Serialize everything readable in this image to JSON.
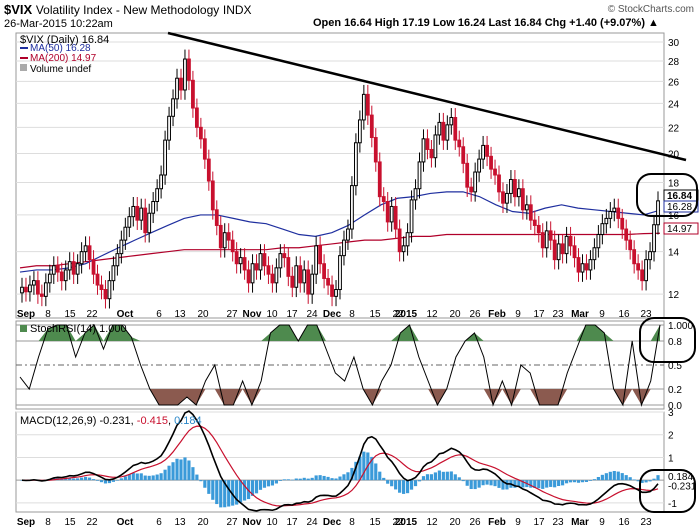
{
  "header": {
    "symbol": "$VIX",
    "name": "Volatility Index - New Methodology",
    "exchange": "INDX",
    "date": "26-Mar-2015 10:22am",
    "copyright": "© StockCharts.com",
    "quote": "Open 16.64  High 17.19  Low 16.24  Last 16.84  Chg +1.40 (+9.07%) ▲"
  },
  "colors": {
    "up": "#000000",
    "down": "#c8102e",
    "ma50": "#1f2f9f",
    "ma200": "#b0002a",
    "green_fill": "#4e8a4e",
    "brown_fill": "#8b5a4f",
    "macd_hist": "#3a9ad9",
    "trendline": "#000000"
  },
  "legend": {
    "price": "$VIX (Daily) 16.84",
    "ma50": "MA(50) 16.28",
    "ma200": "MA(200) 14.97",
    "volume": "Volume undef"
  },
  "stochrsi_label": "StochRSI(14) 1.000",
  "macd_label": {
    "prefix": "MACD(12,26,9) -0.231, ",
    "signal": "-0.415",
    "sep": ", ",
    "hist": "0.184"
  },
  "price_axis_ticks": [
    "30",
    "28",
    "26",
    "24",
    "22",
    "20",
    "18",
    "16",
    "14",
    "12"
  ],
  "price_boxes": {
    "last": "16.84",
    "ma50": "16.28",
    "ma200": "14.97"
  },
  "stoch_axis_ticks": [
    "1.000",
    "0.8",
    "0.5",
    "0.2",
    "0.0"
  ],
  "macd_axis_ticks": [
    "3",
    "2",
    "1",
    "0.184",
    "-0.231",
    "-1"
  ],
  "x_labels": [
    "Sep",
    "8",
    "15",
    "22",
    "Oct",
    "6",
    "13",
    "20",
    "27",
    "Nov",
    "10",
    "17",
    "24",
    "Dec",
    "8",
    "15",
    "22",
    "2015",
    "12",
    "20",
    "26",
    "Feb",
    "9",
    "17",
    "23",
    "Mar",
    "9",
    "16",
    "23"
  ],
  "chart_data": {
    "type": "candlestick",
    "title": "$VIX Volatility Index - New Methodology (Daily)",
    "x_range": [
      "2014-09-02",
      "2015-03-26"
    ],
    "ylim": [
      11,
      31
    ],
    "y_scale": "log",
    "last": {
      "open": 16.64,
      "high": 17.19,
      "low": 16.24,
      "close": 16.84,
      "change": 1.4,
      "change_pct": 9.07
    },
    "close_series": [
      12.3,
      12.1,
      12.4,
      12.6,
      12.0,
      11.9,
      12.5,
      12.9,
      13.3,
      13.0,
      12.6,
      13.1,
      13.5,
      12.9,
      13.4,
      14.0,
      14.3,
      13.6,
      12.9,
      12.4,
      12.2,
      11.8,
      12.6,
      13.3,
      13.9,
      14.6,
      15.3,
      15.9,
      16.5,
      15.7,
      16.4,
      15.0,
      16.1,
      16.8,
      17.6,
      18.5,
      21.0,
      22.9,
      24.4,
      26.3,
      25.2,
      28.2,
      26.1,
      23.6,
      22.0,
      21.1,
      19.6,
      18.1,
      16.3,
      15.4,
      14.2,
      15.0,
      14.6,
      14.0,
      13.4,
      13.7,
      13.1,
      12.5,
      13.4,
      13.1,
      13.9,
      13.3,
      12.9,
      12.5,
      13.2,
      13.9,
      13.7,
      12.8,
      12.3,
      13.3,
      12.5,
      13.1,
      12.0,
      12.9,
      14.3,
      13.4,
      12.7,
      12.4,
      11.9,
      12.2,
      13.8,
      14.6,
      15.2,
      17.8,
      20.8,
      22.6,
      24.8,
      23.0,
      21.2,
      19.4,
      17.1,
      16.8,
      15.6,
      16.5,
      15.2,
      14.0,
      14.3,
      15.0,
      16.9,
      17.6,
      19.4,
      21.1,
      20.3,
      19.7,
      21.4,
      22.4,
      21.0,
      22.2,
      22.8,
      21.0,
      20.5,
      19.3,
      17.7,
      17.4,
      18.7,
      19.6,
      20.6,
      19.8,
      18.9,
      18.5,
      17.4,
      16.7,
      17.3,
      18.2,
      17.1,
      17.6,
      16.3,
      16.6,
      15.7,
      15.4,
      15.0,
      14.2,
      15.1,
      14.6,
      13.6,
      14.4,
      13.9,
      14.8,
      14.3,
      13.7,
      13.0,
      13.4,
      13.1,
      13.6,
      14.2,
      14.9,
      15.5,
      15.8,
      16.2,
      16.4,
      15.8,
      15.2,
      14.6,
      14.1,
      13.4,
      13.1,
      12.6,
      13.6,
      14.0,
      15.44,
      16.84
    ],
    "series": [
      {
        "name": "$VIX (Daily)",
        "last": 16.84
      },
      {
        "name": "MA(50)",
        "last": 16.28,
        "values": [
          13.0,
          13.1,
          13.1,
          13.2,
          13.4,
          13.8,
          14.2,
          14.6,
          15.0,
          15.4,
          15.8,
          16.0,
          16.0,
          15.8,
          15.6,
          15.5,
          15.2,
          14.9,
          14.8,
          15.0,
          15.4,
          16.0,
          16.6,
          17.0,
          17.1,
          17.3,
          17.4,
          17.4,
          17.1,
          16.6,
          16.2,
          16.1,
          16.4,
          16.6,
          16.4,
          16.3,
          16.2,
          16.1,
          16.0,
          16.28
        ]
      },
      {
        "name": "MA(200)",
        "last": 14.97,
        "values": [
          13.2,
          13.3,
          13.3,
          13.4,
          13.5,
          13.6,
          13.7,
          13.8,
          13.9,
          14.0,
          14.1,
          14.1,
          14.1,
          14.1,
          14.1,
          14.1,
          14.2,
          14.2,
          14.3,
          14.4,
          14.5,
          14.6,
          14.6,
          14.7,
          14.8,
          14.8,
          14.9,
          14.9,
          14.9,
          14.9,
          14.9,
          14.9,
          14.9,
          14.9,
          14.9,
          14.9,
          14.9,
          14.9,
          14.95,
          14.97
        ]
      },
      {
        "name": "StochRSI(14)",
        "last": 1.0,
        "values": [
          0.35,
          0.2,
          0.6,
          0.95,
          1.0,
          1.0,
          0.6,
          0.9,
          1.0,
          0.7,
          1.0,
          1.0,
          0.85,
          0.5,
          0.2,
          0.0,
          0.0,
          0.0,
          0.1,
          0.0,
          0.3,
          0.5,
          0.0,
          0.0,
          0.3,
          0.0,
          0.3,
          0.9,
          1.0,
          1.0,
          0.8,
          1.0,
          1.0,
          0.7,
          0.4,
          0.3,
          0.6,
          0.2,
          0.0,
          0.3,
          0.5,
          0.9,
          1.0,
          0.6,
          0.3,
          0.0,
          0.2,
          0.6,
          0.8,
          0.9,
          0.6,
          0.0,
          0.3,
          0.0,
          0.5,
          0.4,
          0.0,
          0.0,
          0.0,
          0.4,
          0.7,
          1.0,
          1.0,
          0.9,
          0.2,
          0.0,
          0.8,
          0.0,
          0.3,
          1.0
        ]
      },
      {
        "name": "MACD(12,26,9)",
        "last": -0.231,
        "signal_last": -0.415,
        "hist_last": 0.184
      }
    ],
    "annotations": [
      "downward trendline drawn across price highs",
      "circled highlights on latest StochRSI, MACD and price readings"
    ]
  }
}
